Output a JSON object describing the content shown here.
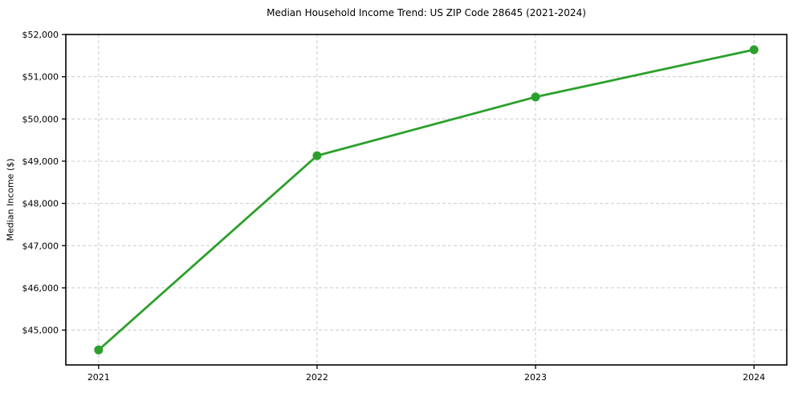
{
  "chart_data": {
    "type": "line",
    "title": "Median Household Income Trend: US ZIP Code 28645 (2021-2024)",
    "xlabel": "",
    "ylabel": "Median Income ($)",
    "categories": [
      2021,
      2022,
      2023,
      2024
    ],
    "x_tick_labels": [
      "2021",
      "2022",
      "2023",
      "2024"
    ],
    "values": [
      44530,
      49130,
      50520,
      51640
    ],
    "y_ticks": [
      45000,
      46000,
      47000,
      48000,
      49000,
      50000,
      51000,
      52000
    ],
    "y_tick_labels": [
      "$45,000",
      "$46,000",
      "$47,000",
      "$48,000",
      "$49,000",
      "$50,000",
      "$51,000",
      "$52,000"
    ],
    "ylim": [
      44175,
      52000
    ],
    "xlim": [
      2020.85,
      2024.15
    ],
    "grid": true,
    "legend": "none",
    "line_color": "#2ca02c",
    "marker_color": "#2ca02c",
    "marker_radius": 5.5,
    "line_width": 2.8,
    "grid_color": "#cccccc",
    "spine_color": "#000000",
    "tick_label_color": "#000000",
    "background": "#ffffff"
  }
}
